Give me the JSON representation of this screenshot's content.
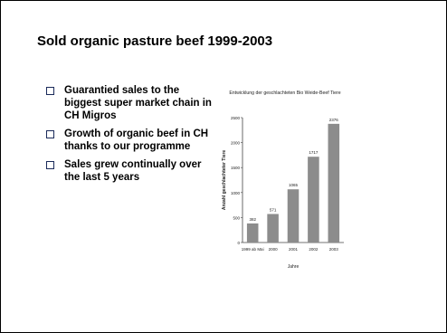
{
  "title": "Sold organic pasture beef 1999-2003",
  "bullets": [
    "Guarantied sales to the biggest super market chain in CH Migros",
    "Growth of organic beef in CH thanks to our programme",
    "Sales grew continually over the last 5 years"
  ],
  "chart_data": {
    "type": "bar",
    "title": "Entwicklung der geschlachteten Bio Weide-Beef Tiere",
    "y_label": "Anzahl geschlachteter Tiere",
    "x_label": "Jahre",
    "categories": [
      "1999 ab Mai",
      "2000",
      "2001",
      "2002",
      "2003"
    ],
    "values": [
      382,
      571,
      1065,
      1717,
      2376
    ],
    "color": "#8c8c8c",
    "ylim": [
      0,
      2500
    ],
    "yticks": [
      0,
      500,
      1000,
      1500,
      2000,
      2500
    ]
  }
}
